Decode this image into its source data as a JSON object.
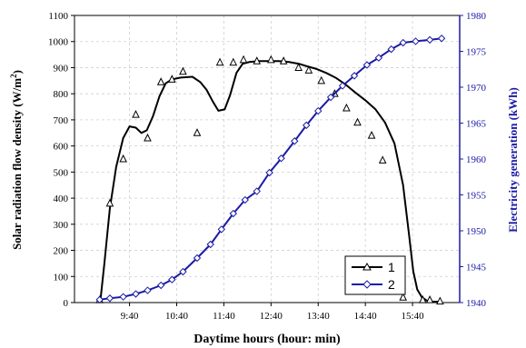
{
  "chart_data": {
    "type": "line",
    "xlabel": "Daytime hours (hour: min)",
    "x_tick_labels": [
      "9:40",
      "10:40",
      "11:40",
      "12:40",
      "13:40",
      "14:40",
      "15:40"
    ],
    "x_tick_minutes": [
      580,
      640,
      700,
      760,
      820,
      880,
      940
    ],
    "xlim_minutes": [
      510,
      1000
    ],
    "y_left": {
      "label": "Solar radiation flow density (W/m²)",
      "label_main": "Solar radiation flow density (W/m",
      "label_sup": "2",
      "label_end": ")",
      "ylim": [
        0,
        1100
      ],
      "ticks": [
        "0",
        "100",
        "200",
        "300",
        "400",
        "500",
        "600",
        "700",
        "800",
        "900",
        "1000",
        "1100"
      ],
      "color": "#000000"
    },
    "y_right": {
      "label": "Electricity generation (kWh)",
      "ylim": [
        1940,
        1980
      ],
      "ticks": [
        "1940",
        "1945",
        "1950",
        "1955",
        "1960",
        "1965",
        "1970",
        "1975",
        "1980"
      ],
      "color": "#1a1aa6"
    },
    "grid": true,
    "legend": {
      "position": "bottom-right",
      "entries": [
        "1",
        "2"
      ]
    },
    "series": [
      {
        "name": "1",
        "axis": "left",
        "color": "#000000",
        "marker": "triangle",
        "line_minutes": [
          543,
          548,
          555,
          563,
          572,
          580,
          588,
          595,
          602,
          610,
          618,
          626,
          634,
          645,
          660,
          670,
          678,
          686,
          693,
          701,
          708,
          716,
          724,
          733,
          745,
          757,
          770,
          782,
          795,
          806,
          818,
          830,
          843,
          855,
          867,
          880,
          893,
          905,
          917,
          928,
          936,
          941,
          946,
          952,
          958,
          965,
          973
        ],
        "line_values": [
          10,
          150,
          360,
          520,
          630,
          675,
          670,
          650,
          660,
          715,
          790,
          840,
          855,
          862,
          865,
          845,
          815,
          770,
          735,
          740,
          795,
          880,
          915,
          922,
          925,
          925,
          925,
          922,
          915,
          905,
          895,
          880,
          860,
          835,
          805,
          775,
          740,
          690,
          610,
          450,
          250,
          120,
          50,
          20,
          8,
          4,
          3
        ],
        "marker_minutes": [
          542,
          555,
          572,
          588,
          603,
          620,
          634,
          648,
          666,
          695,
          712,
          725,
          742,
          760,
          776,
          795,
          808,
          824,
          841,
          856,
          870,
          888,
          902,
          928,
          953,
          962,
          975
        ],
        "marker_values": [
          10,
          380,
          550,
          720,
          630,
          845,
          855,
          885,
          650,
          920,
          920,
          930,
          925,
          930,
          925,
          900,
          890,
          850,
          800,
          745,
          690,
          640,
          545,
          20,
          10,
          10,
          5
        ]
      },
      {
        "name": "2",
        "axis": "right",
        "color": "#1a1aa6",
        "marker": "diamond",
        "x_minutes": [
          542,
          555,
          572,
          588,
          603,
          620,
          634,
          648,
          666,
          683,
          697,
          712,
          727,
          742,
          758,
          773,
          790,
          805,
          820,
          836,
          851,
          866,
          882,
          897,
          913,
          928,
          944,
          962,
          977
        ],
        "values": [
          1940.4,
          1940.6,
          1940.8,
          1941.2,
          1941.7,
          1942.4,
          1943.2,
          1944.3,
          1946.2,
          1948.1,
          1950.2,
          1952.4,
          1954.3,
          1955.5,
          1958.1,
          1960.1,
          1962.5,
          1964.7,
          1966.7,
          1968.6,
          1970.2,
          1971.6,
          1973.1,
          1974.1,
          1975.3,
          1976.2,
          1976.4,
          1976.6,
          1976.8
        ]
      }
    ]
  }
}
